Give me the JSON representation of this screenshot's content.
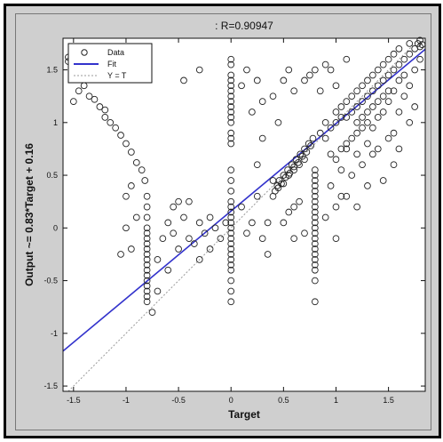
{
  "colors": {
    "figure_bg": "#cfcfcf",
    "axes_bg": "#ffffff",
    "fit_line": "#3333cc",
    "identity_line": "#9a9a9a",
    "marker": "#222222"
  },
  "chart_data": {
    "type": "scatter",
    "title": ": R=0.90947",
    "xlabel": "Target",
    "ylabel": "Output ~= 0.83*Target + 0.16",
    "xlim": [
      -1.6,
      1.85
    ],
    "ylim": [
      -1.55,
      1.8
    ],
    "xticks": [
      -1.5,
      -1,
      -0.5,
      0,
      0.5,
      1,
      1.5
    ],
    "xtick_labels": [
      "-1.5",
      "-1",
      "-0.5",
      "0",
      "0.5",
      "1",
      "1.5"
    ],
    "yticks": [
      -1.5,
      -1,
      -0.5,
      0,
      0.5,
      1,
      1.5
    ],
    "ytick_labels": [
      "-1.5",
      "-1",
      "-0.5",
      "0",
      "0.5",
      "1",
      "1.5"
    ],
    "grid": false,
    "legend": {
      "placement": "top-left",
      "entries": [
        "Data",
        "Fit",
        "Y = T"
      ]
    },
    "fit": {
      "slope": 0.83,
      "intercept": 0.16
    },
    "identity": {
      "slope": 1,
      "intercept": 0
    },
    "series": [
      {
        "name": "Data",
        "marker": "circle",
        "points": [
          [
            -1.55,
            1.62
          ],
          [
            -1.55,
            1.58
          ],
          [
            -1.5,
            1.6
          ],
          [
            -1.45,
            1.3
          ],
          [
            -1.4,
            1.35
          ],
          [
            -1.35,
            1.25
          ],
          [
            -1.3,
            1.22
          ],
          [
            -1.25,
            1.15
          ],
          [
            -1.2,
            1.12
          ],
          [
            -1.2,
            1.05
          ],
          [
            -1.15,
            1.0
          ],
          [
            -1.1,
            0.95
          ],
          [
            -1.05,
            0.88
          ],
          [
            -1.0,
            0.8
          ],
          [
            -0.95,
            0.72
          ],
          [
            -0.9,
            0.62
          ],
          [
            -0.85,
            0.55
          ],
          [
            -0.82,
            0.45
          ],
          [
            -1.5,
            1.2
          ],
          [
            -1.4,
            1.48
          ],
          [
            -1.0,
            0.3
          ],
          [
            -1.0,
            0.0
          ],
          [
            -0.95,
            -0.2
          ],
          [
            -0.9,
            0.1
          ],
          [
            -1.05,
            -0.25
          ],
          [
            -0.95,
            0.4
          ],
          [
            -0.8,
            0.3
          ],
          [
            -0.8,
            0.2
          ],
          [
            -0.8,
            0.1
          ],
          [
            -0.8,
            0.0
          ],
          [
            -0.8,
            -0.05
          ],
          [
            -0.8,
            -0.1
          ],
          [
            -0.8,
            -0.15
          ],
          [
            -0.8,
            -0.2
          ],
          [
            -0.8,
            -0.25
          ],
          [
            -0.8,
            -0.3
          ],
          [
            -0.8,
            -0.35
          ],
          [
            -0.8,
            -0.4
          ],
          [
            -0.8,
            -0.45
          ],
          [
            -0.8,
            -0.5
          ],
          [
            -0.8,
            -0.55
          ],
          [
            -0.8,
            -0.6
          ],
          [
            -0.8,
            -0.65
          ],
          [
            -0.8,
            -0.7
          ],
          [
            -0.75,
            -0.8
          ],
          [
            -0.7,
            -0.6
          ],
          [
            -0.7,
            -0.3
          ],
          [
            -0.65,
            -0.1
          ],
          [
            -0.6,
            0.05
          ],
          [
            -0.6,
            -0.4
          ],
          [
            -0.5,
            0.25
          ],
          [
            -0.55,
            -0.05
          ],
          [
            -0.5,
            -0.2
          ],
          [
            -0.45,
            0.1
          ],
          [
            -0.4,
            0.25
          ],
          [
            -0.4,
            -0.1
          ],
          [
            -0.35,
            -0.15
          ],
          [
            -0.3,
            0.05
          ],
          [
            -0.3,
            -0.3
          ],
          [
            -0.25,
            -0.05
          ],
          [
            -0.2,
            0.1
          ],
          [
            -0.2,
            -0.2
          ],
          [
            -0.15,
            0.0
          ],
          [
            -0.1,
            -0.1
          ],
          [
            -0.05,
            0.05
          ],
          [
            -0.45,
            1.4
          ],
          [
            -0.3,
            1.5
          ],
          [
            -0.55,
            0.2
          ],
          [
            0.0,
            1.6
          ],
          [
            0.0,
            1.55
          ],
          [
            0.0,
            1.45
          ],
          [
            0.0,
            1.4
          ],
          [
            0.0,
            1.35
          ],
          [
            0.0,
            1.3
          ],
          [
            0.0,
            1.25
          ],
          [
            0.0,
            1.2
          ],
          [
            0.0,
            1.15
          ],
          [
            0.0,
            1.1
          ],
          [
            0.0,
            1.05
          ],
          [
            0.0,
            1.0
          ],
          [
            0.0,
            0.9
          ],
          [
            0.0,
            0.85
          ],
          [
            0.0,
            0.8
          ],
          [
            0.0,
            0.55
          ],
          [
            0.0,
            0.45
          ],
          [
            0.0,
            0.35
          ],
          [
            0.0,
            0.25
          ],
          [
            0.0,
            0.2
          ],
          [
            0.0,
            0.15
          ],
          [
            0.0,
            0.1
          ],
          [
            0.0,
            0.05
          ],
          [
            0.0,
            0.0
          ],
          [
            0.0,
            -0.05
          ],
          [
            0.0,
            -0.1
          ],
          [
            0.0,
            -0.15
          ],
          [
            0.0,
            -0.2
          ],
          [
            0.0,
            -0.25
          ],
          [
            0.0,
            -0.3
          ],
          [
            0.0,
            -0.35
          ],
          [
            0.0,
            -0.4
          ],
          [
            0.0,
            -0.5
          ],
          [
            0.0,
            -0.6
          ],
          [
            0.0,
            -0.7
          ],
          [
            0.1,
            1.35
          ],
          [
            0.15,
            1.5
          ],
          [
            0.2,
            1.1
          ],
          [
            0.25,
            1.4
          ],
          [
            0.3,
            1.2
          ],
          [
            0.1,
            0.2
          ],
          [
            0.15,
            -0.05
          ],
          [
            0.2,
            0.05
          ],
          [
            0.25,
            0.3
          ],
          [
            0.3,
            -0.1
          ],
          [
            0.35,
            -0.25
          ],
          [
            0.35,
            0.05
          ],
          [
            0.25,
            0.6
          ],
          [
            0.3,
            0.85
          ],
          [
            0.4,
            1.25
          ],
          [
            0.45,
            1.0
          ],
          [
            0.5,
            1.4
          ],
          [
            0.55,
            1.5
          ],
          [
            0.6,
            1.3
          ],
          [
            0.7,
            1.4
          ],
          [
            0.75,
            1.45
          ],
          [
            0.8,
            1.5
          ],
          [
            0.85,
            1.3
          ],
          [
            0.9,
            1.55
          ],
          [
            0.95,
            1.5
          ],
          [
            1.0,
            1.35
          ],
          [
            1.1,
            1.6
          ],
          [
            0.4,
            0.3
          ],
          [
            0.42,
            0.35
          ],
          [
            0.44,
            0.4
          ],
          [
            0.46,
            0.45
          ],
          [
            0.48,
            0.42
          ],
          [
            0.5,
            0.5
          ],
          [
            0.52,
            0.48
          ],
          [
            0.54,
            0.55
          ],
          [
            0.56,
            0.52
          ],
          [
            0.58,
            0.6
          ],
          [
            0.6,
            0.58
          ],
          [
            0.62,
            0.65
          ],
          [
            0.64,
            0.62
          ],
          [
            0.66,
            0.7
          ],
          [
            0.68,
            0.68
          ],
          [
            0.7,
            0.75
          ],
          [
            0.72,
            0.72
          ],
          [
            0.74,
            0.8
          ],
          [
            0.76,
            0.78
          ],
          [
            0.78,
            0.85
          ],
          [
            0.4,
            0.45
          ],
          [
            0.45,
            0.38
          ],
          [
            0.5,
            0.42
          ],
          [
            0.55,
            0.5
          ],
          [
            0.6,
            0.55
          ],
          [
            0.65,
            0.6
          ],
          [
            0.7,
            0.65
          ],
          [
            0.5,
            0.05
          ],
          [
            0.55,
            0.15
          ],
          [
            0.6,
            -0.1
          ],
          [
            0.65,
            0.25
          ],
          [
            0.7,
            -0.05
          ],
          [
            0.6,
            0.2
          ],
          [
            0.8,
            0.55
          ],
          [
            0.8,
            0.5
          ],
          [
            0.8,
            0.45
          ],
          [
            0.8,
            0.4
          ],
          [
            0.8,
            0.35
          ],
          [
            0.8,
            0.3
          ],
          [
            0.8,
            0.25
          ],
          [
            0.8,
            0.2
          ],
          [
            0.8,
            0.15
          ],
          [
            0.8,
            0.1
          ],
          [
            0.8,
            0.05
          ],
          [
            0.8,
            0.0
          ],
          [
            0.8,
            -0.05
          ],
          [
            0.8,
            -0.1
          ],
          [
            0.8,
            -0.15
          ],
          [
            0.8,
            -0.2
          ],
          [
            0.8,
            -0.25
          ],
          [
            0.8,
            -0.3
          ],
          [
            0.8,
            -0.35
          ],
          [
            0.8,
            -0.4
          ],
          [
            0.8,
            -0.5
          ],
          [
            0.8,
            -0.7
          ],
          [
            0.85,
            0.9
          ],
          [
            0.9,
            0.85
          ],
          [
            0.95,
            0.7
          ],
          [
            1.0,
            0.65
          ],
          [
            0.95,
            0.4
          ],
          [
            0.9,
            0.1
          ],
          [
            1.0,
            0.2
          ],
          [
            1.05,
            0.3
          ],
          [
            1.0,
            -0.1
          ],
          [
            1.05,
            0.55
          ],
          [
            1.1,
            0.75
          ],
          [
            0.9,
            1.0
          ],
          [
            0.95,
            0.95
          ],
          [
            1.0,
            1.0
          ],
          [
            1.05,
            1.05
          ],
          [
            1.0,
            1.1
          ],
          [
            1.05,
            1.15
          ],
          [
            1.1,
            1.05
          ],
          [
            1.15,
            1.1
          ],
          [
            1.1,
            1.2
          ],
          [
            1.15,
            1.25
          ],
          [
            1.2,
            1.15
          ],
          [
            1.2,
            1.3
          ],
          [
            1.25,
            1.2
          ],
          [
            1.25,
            1.35
          ],
          [
            1.3,
            1.25
          ],
          [
            1.3,
            1.4
          ],
          [
            1.35,
            1.3
          ],
          [
            1.35,
            1.45
          ],
          [
            1.4,
            1.35
          ],
          [
            1.4,
            1.5
          ],
          [
            1.45,
            1.4
          ],
          [
            1.45,
            1.55
          ],
          [
            1.5,
            1.45
          ],
          [
            1.5,
            1.6
          ],
          [
            1.55,
            1.5
          ],
          [
            1.55,
            1.65
          ],
          [
            1.6,
            1.55
          ],
          [
            1.6,
            1.7
          ],
          [
            1.65,
            1.6
          ],
          [
            1.7,
            1.65
          ],
          [
            1.7,
            1.75
          ],
          [
            1.75,
            1.7
          ],
          [
            1.78,
            1.75
          ],
          [
            1.8,
            1.72
          ],
          [
            1.8,
            1.78
          ],
          [
            1.82,
            1.74
          ],
          [
            1.2,
            1.0
          ],
          [
            1.25,
            1.05
          ],
          [
            1.3,
            1.1
          ],
          [
            1.35,
            1.15
          ],
          [
            1.4,
            1.2
          ],
          [
            1.45,
            1.25
          ],
          [
            1.5,
            1.3
          ],
          [
            1.2,
            0.9
          ],
          [
            1.25,
            0.95
          ],
          [
            1.3,
            1.0
          ],
          [
            1.15,
            0.85
          ],
          [
            1.1,
            0.8
          ],
          [
            1.05,
            0.75
          ],
          [
            1.3,
            0.8
          ],
          [
            1.35,
            0.95
          ],
          [
            1.4,
            1.05
          ],
          [
            1.45,
            1.1
          ],
          [
            1.5,
            1.2
          ],
          [
            1.55,
            1.3
          ],
          [
            1.6,
            1.4
          ],
          [
            1.65,
            1.45
          ],
          [
            1.2,
            0.7
          ],
          [
            1.25,
            0.6
          ],
          [
            1.15,
            0.5
          ],
          [
            1.3,
            0.4
          ],
          [
            1.1,
            0.3
          ],
          [
            1.2,
            0.2
          ],
          [
            1.35,
            0.7
          ],
          [
            1.4,
            0.75
          ],
          [
            1.5,
            0.85
          ],
          [
            1.55,
            0.9
          ],
          [
            1.6,
            1.1
          ],
          [
            1.65,
            1.25
          ],
          [
            1.7,
            1.35
          ],
          [
            1.75,
            1.5
          ],
          [
            1.8,
            1.6
          ],
          [
            1.55,
            0.6
          ],
          [
            1.45,
            0.45
          ],
          [
            1.6,
            0.75
          ],
          [
            1.7,
            1.0
          ],
          [
            1.75,
            1.15
          ]
        ]
      }
    ]
  }
}
